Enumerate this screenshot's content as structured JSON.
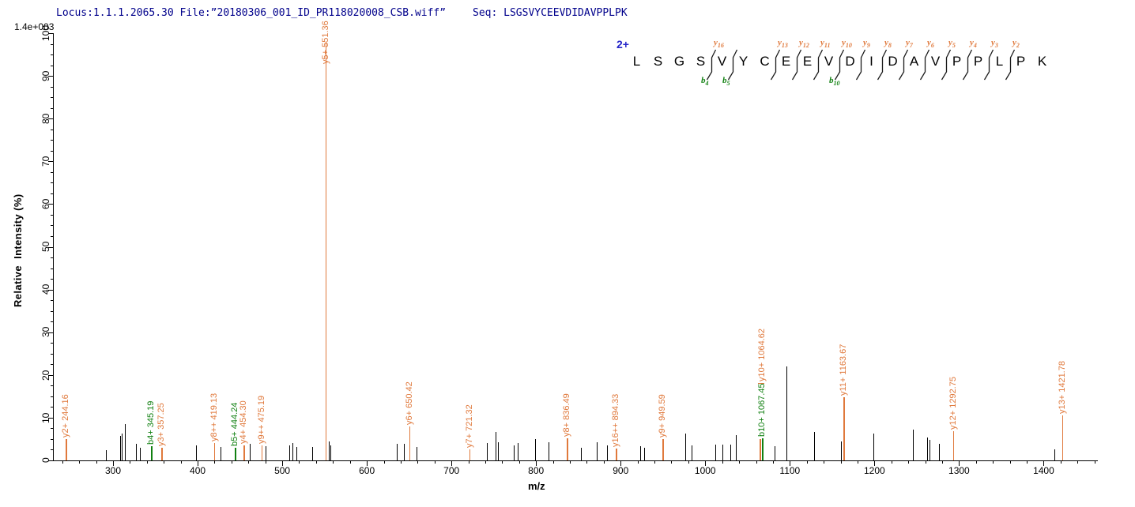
{
  "header": {
    "locus_file": "Locus:1.1.1.2065.30 File:”20180306_001_ID_PR118020008_CSB.wiff”",
    "seq_label": "Seq: LSGSVYCEEVDIDAVPPLPK"
  },
  "precursor": {
    "charge_label": "2+"
  },
  "axes": {
    "y_scale_note": "1.4e+003",
    "y_label": "Relative  Intensity (%)",
    "x_label": "m/z"
  },
  "sequence_panel": {
    "residues": [
      {
        "aa": "L"
      },
      {
        "aa": "S"
      },
      {
        "aa": "G"
      },
      {
        "aa": "S"
      },
      {
        "aa": "V",
        "y": "y16",
        "b": "b4"
      },
      {
        "aa": "Y",
        "b": "b5"
      },
      {
        "aa": "C"
      },
      {
        "aa": "E",
        "y": "y13"
      },
      {
        "aa": "E",
        "y": "y12"
      },
      {
        "aa": "V",
        "y": "y11"
      },
      {
        "aa": "D",
        "y": "y10",
        "b": "b10"
      },
      {
        "aa": "I",
        "y": "y9"
      },
      {
        "aa": "D",
        "y": "y8"
      },
      {
        "aa": "A",
        "y": "y7"
      },
      {
        "aa": "V",
        "y": "y6"
      },
      {
        "aa": "P",
        "y": "y5"
      },
      {
        "aa": "P",
        "y": "y4"
      },
      {
        "aa": "L",
        "y": "y3"
      },
      {
        "aa": "P",
        "y": "y2"
      },
      {
        "aa": "K"
      }
    ]
  },
  "chart_data": {
    "type": "bar",
    "variant": "ms2_fragment_spectrum",
    "title": "",
    "xlabel": "m/z",
    "ylabel": "Relative Intensity (%)",
    "y_scale_note": "1.4e+003",
    "xlim": [
      230,
      1463
    ],
    "ylim": [
      0,
      100
    ],
    "x_major_ticks": [
      300,
      400,
      500,
      600,
      700,
      800,
      900,
      1000,
      1100,
      1200,
      1300,
      1400
    ],
    "x_minor_step": 20,
    "y_major_ticks": [
      0,
      10,
      20,
      30,
      40,
      50,
      60,
      70,
      80,
      90,
      100
    ],
    "y_minor_step": 2.5,
    "legend": "orange = y ions, green = b ions, black = unassigned",
    "labeled_peaks": [
      {
        "label": "y2+ 244.16",
        "ion": "y",
        "mz": 244.16,
        "intensity_pct": 5.0
      },
      {
        "label": "b4+ 345.19",
        "ion": "b",
        "mz": 345.19,
        "intensity_pct": 3.3
      },
      {
        "label": "y3+ 357.25",
        "ion": "y",
        "mz": 357.25,
        "intensity_pct": 3.0
      },
      {
        "label": "y8++ 419.13",
        "ion": "y",
        "mz": 419.13,
        "intensity_pct": 4.0
      },
      {
        "label": "b5+ 444.24",
        "ion": "b",
        "mz": 444.24,
        "intensity_pct": 3.0
      },
      {
        "label": "y4+ 454.30",
        "ion": "y",
        "mz": 454.3,
        "intensity_pct": 3.5
      },
      {
        "label": "y9++ 475.19",
        "ion": "y",
        "mz": 475.19,
        "intensity_pct": 3.6
      },
      {
        "label": "y5+ 551.36",
        "ion": "y",
        "mz": 551.36,
        "intensity_pct": 98.0,
        "label_dy": 30
      },
      {
        "label": "y6+ 650.42",
        "ion": "y",
        "mz": 650.42,
        "intensity_pct": 8.0
      },
      {
        "label": "y7+ 721.32",
        "ion": "y",
        "mz": 721.32,
        "intensity_pct": 2.6
      },
      {
        "label": "y8+ 836.49",
        "ion": "y",
        "mz": 836.49,
        "intensity_pct": 5.2
      },
      {
        "label": "y16++ 894.33",
        "ion": "y",
        "mz": 894.33,
        "intensity_pct": 2.8
      },
      {
        "label": "y9+ 949.59",
        "ion": "y",
        "mz": 949.59,
        "intensity_pct": 5.0
      },
      {
        "label": "y10+ 1064.62",
        "ion": "y",
        "mz": 1064.62,
        "intensity_pct": 5.0,
        "label_dy": -71,
        "label_dx": 3,
        "leader_dash": true
      },
      {
        "label": "b10+ 1067.45",
        "ion": "b",
        "mz": 1067.45,
        "intensity_pct": 5.2
      },
      {
        "label": "y11+ 1163.67",
        "ion": "y",
        "mz": 1163.67,
        "intensity_pct": 14.7
      },
      {
        "label": "y12+ 1292.75",
        "ion": "y",
        "mz": 1292.75,
        "intensity_pct": 6.8
      },
      {
        "label": "y13+ 1421.78",
        "ion": "y",
        "mz": 1421.78,
        "intensity_pct": 10.5
      }
    ],
    "noise_peaks": [
      [
        292,
        2.4
      ],
      [
        308,
        5.8
      ],
      [
        310,
        6.2
      ],
      [
        314,
        8.5
      ],
      [
        327,
        3.8
      ],
      [
        332,
        3.0
      ],
      [
        398,
        3.5
      ],
      [
        427,
        3.2
      ],
      [
        462,
        3.8
      ],
      [
        480,
        3.4
      ],
      [
        508,
        3.6
      ],
      [
        512,
        4.1
      ],
      [
        517,
        3.1
      ],
      [
        535,
        3.1
      ],
      [
        555,
        4.5
      ],
      [
        557,
        3.6
      ],
      [
        635,
        3.8
      ],
      [
        644,
        3.8
      ],
      [
        659,
        3.1
      ],
      [
        742,
        4.0
      ],
      [
        752,
        6.6
      ],
      [
        755,
        4.2
      ],
      [
        774,
        3.6
      ],
      [
        778,
        4.1
      ],
      [
        799,
        5.0
      ],
      [
        815,
        4.2
      ],
      [
        853,
        3.0
      ],
      [
        872,
        4.2
      ],
      [
        884,
        3.5
      ],
      [
        923,
        3.3
      ],
      [
        928,
        2.9
      ],
      [
        976,
        6.2
      ],
      [
        984,
        3.5
      ],
      [
        1012,
        3.7
      ],
      [
        1020,
        3.7
      ],
      [
        1030,
        3.7
      ],
      [
        1036,
        6.0
      ],
      [
        1082,
        3.3
      ],
      [
        1096,
        22.0
      ],
      [
        1129,
        6.7
      ],
      [
        1160,
        4.4
      ],
      [
        1199,
        6.2
      ],
      [
        1245,
        7.2
      ],
      [
        1262,
        5.4
      ],
      [
        1265,
        4.8
      ],
      [
        1276,
        3.8
      ],
      [
        1413,
        2.5
      ]
    ]
  },
  "colors": {
    "y_ion": "#E0793C",
    "b_ion": "#118011",
    "peak": "#000000",
    "axis": "#000000",
    "header_text": "#00008B",
    "charge": "#2626C9"
  }
}
